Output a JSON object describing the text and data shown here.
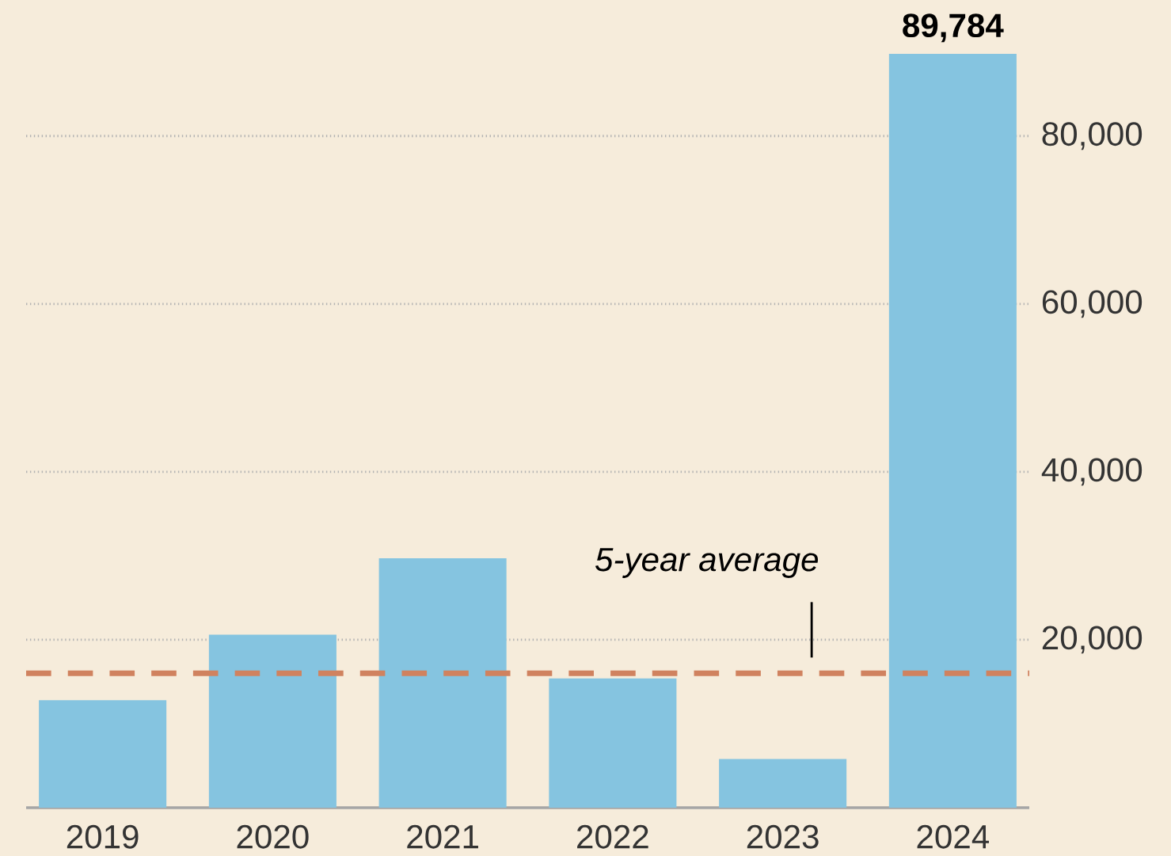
{
  "chart_data": {
    "type": "bar",
    "categories": [
      "2019",
      "2020",
      "2021",
      "2022",
      "2023",
      "2024"
    ],
    "values": [
      12800,
      20600,
      29700,
      15400,
      5800,
      89784
    ],
    "value_labels": [
      null,
      null,
      null,
      null,
      null,
      "89,784"
    ],
    "color": "#85c4e0",
    "ylim": [
      0,
      89784
    ],
    "yticks": [
      {
        "value": 20000,
        "label": "20,000"
      },
      {
        "value": 40000,
        "label": "40,000"
      },
      {
        "value": 60000,
        "label": "60,000"
      },
      {
        "value": 80000,
        "label": "80,000"
      }
    ],
    "grid": "y",
    "ref_lines": [
      {
        "axis": "y",
        "value": 16000,
        "label": "5-year average",
        "color": "#d0825f",
        "line_style": "dashed"
      }
    ]
  }
}
